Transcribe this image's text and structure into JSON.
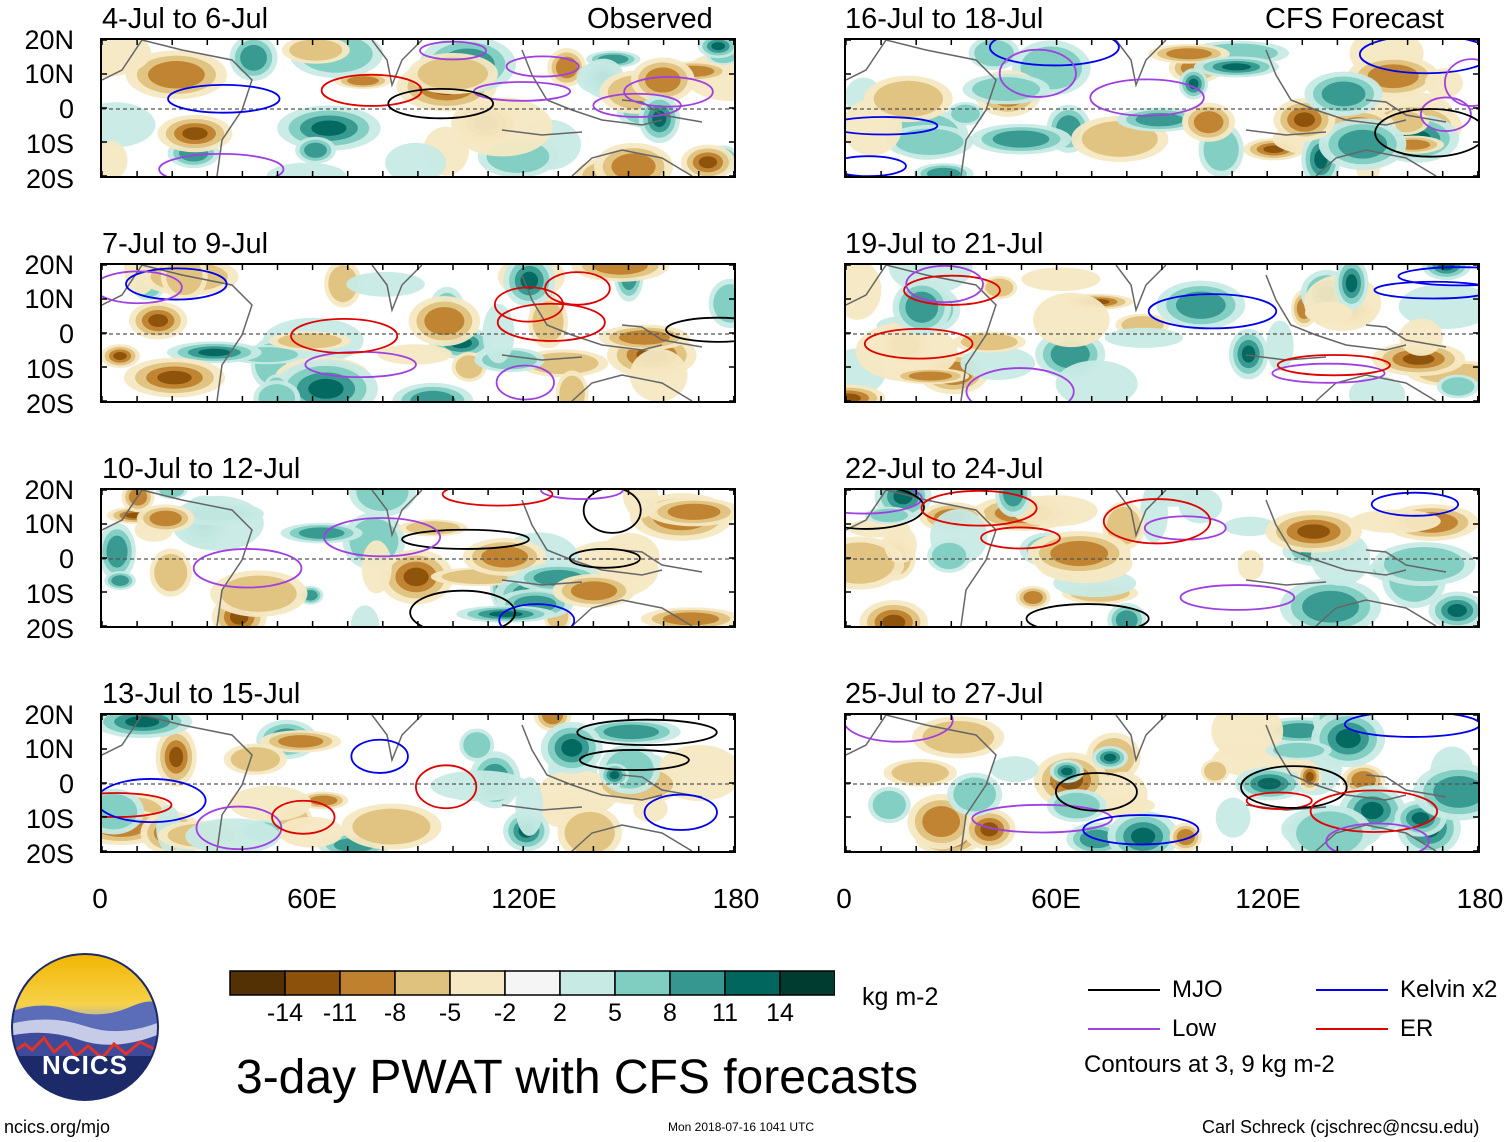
{
  "figure": {
    "main_title": "3-day PWAT with CFS forecasts",
    "colorbar_units": "kg m-2",
    "contour_note": "Contours at 3, 9 kg m-2",
    "footer_left": "ncics.org/mjo",
    "footer_center": "Mon 2018-07-16 1041 UTC",
    "footer_right": "Carl Schreck (cjschrec@ncsu.edu)",
    "logo_text": "NCICS",
    "column_headers": {
      "left": "Observed",
      "right": "CFS Forecast"
    }
  },
  "axes": {
    "y_labels": [
      "20N",
      "10N",
      "0",
      "10S",
      "20S"
    ],
    "x_labels": [
      "0",
      "60E",
      "120E",
      "180"
    ]
  },
  "panels": {
    "left": [
      {
        "title": "4-Jul to 6-Jul"
      },
      {
        "title": "7-Jul to 9-Jul"
      },
      {
        "title": "10-Jul to 12-Jul"
      },
      {
        "title": "13-Jul to 15-Jul"
      }
    ],
    "right": [
      {
        "title": "16-Jul to 18-Jul"
      },
      {
        "title": "19-Jul to 21-Jul"
      },
      {
        "title": "22-Jul to 24-Jul"
      },
      {
        "title": "25-Jul to 27-Jul"
      }
    ]
  },
  "colorbar": {
    "labels": [
      "-14",
      "-11",
      "-8",
      "-5",
      "-2",
      "2",
      "5",
      "8",
      "11",
      "14"
    ],
    "colors": [
      "#543005",
      "#8c510a",
      "#bf812d",
      "#dfc27d",
      "#f6e8c3",
      "#f5f5f5",
      "#c7eae5",
      "#80cdc1",
      "#35978f",
      "#01665e",
      "#003c30"
    ]
  },
  "legend": {
    "items": [
      {
        "label": "MJO",
        "color": "#000000"
      },
      {
        "label": "Kelvin x2",
        "color": "#0000ee"
      },
      {
        "label": "Low",
        "color": "#a040e0"
      },
      {
        "label": "ER",
        "color": "#e00000"
      }
    ]
  }
}
